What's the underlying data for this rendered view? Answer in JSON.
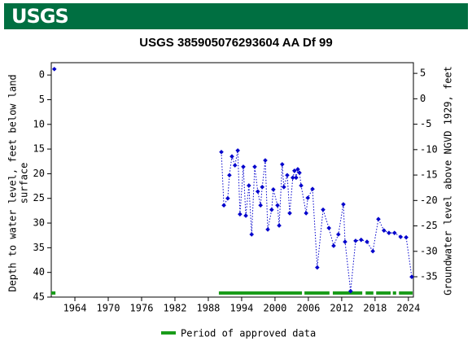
{
  "header": {
    "logo": "USGS"
  },
  "chart_data": {
    "type": "scatter",
    "title": "USGS 385905076293604 AA Df  99",
    "ylabel": [
      "Depth to water level, feet below land",
      "surface"
    ],
    "y2label": "Groundwater level above NGVD 1929, feet",
    "color": "#0000cc",
    "x": [
      1960.3,
      1990.35,
      1990.8,
      1991.5,
      1991.8,
      1992.25,
      1992.8,
      1993.3,
      1993.7,
      1994.3,
      1994.75,
      1995.3,
      1995.8,
      1996.35,
      1996.9,
      1997.4,
      1997.7,
      1998.25,
      1998.7,
      1999.4,
      1999.7,
      2000.45,
      2000.75,
      2001.3,
      2001.6,
      2002.2,
      2002.65,
      2003.2,
      2003.5,
      2003.8,
      2004.1,
      2004.4,
      2004.7,
      2005.6,
      2005.9,
      2006.75,
      2007.6,
      2008.65,
      2009.7,
      2010.55,
      2011.4,
      2012.3,
      2012.6,
      2013.6,
      2014.5,
      2015.5,
      2016.55,
      2017.6,
      2018.6,
      2019.6,
      2020.5,
      2021.5,
      2022.6,
      2023.6,
      2024.6
    ],
    "values": [
      -1.2,
      15.6,
      26.4,
      25.0,
      20.3,
      16.5,
      18.3,
      15.3,
      28.2,
      18.6,
      28.5,
      22.4,
      32.3,
      18.6,
      23.6,
      26.4,
      22.7,
      17.3,
      31.3,
      27.3,
      23.2,
      26.4,
      30.5,
      18.1,
      22.7,
      20.3,
      28.0,
      20.8,
      19.4,
      20.8,
      19.1,
      19.8,
      22.4,
      28.0,
      24.9,
      23.1,
      39.0,
      27.3,
      31.0,
      34.6,
      32.3,
      26.2,
      33.8,
      43.8,
      33.6,
      33.4,
      33.8,
      35.7,
      29.2,
      31.5,
      32.0,
      32.0,
      32.8,
      32.9,
      40.9
    ],
    "approved_periods": [
      [
        1959.75,
        1960.5
      ],
      [
        1989.9,
        2004.85
      ],
      [
        2005.3,
        2009.8
      ],
      [
        2010.4,
        2015.7
      ],
      [
        2016.3,
        2017.7
      ],
      [
        2018.2,
        2020.8
      ],
      [
        2021.2,
        2021.8
      ],
      [
        2022.3,
        2024.75
      ]
    ],
    "approved_color": "#1a9c1a",
    "legend_label": "Period of approved data",
    "xlim": [
      1959.75,
      2024.9
    ],
    "xticks": [
      1964,
      1970,
      1976,
      1982,
      1988,
      1994,
      2000,
      2006,
      2012,
      2018,
      2024
    ],
    "ylim": [
      -2.5,
      45
    ],
    "yticks": [
      0,
      5,
      10,
      15,
      20,
      25,
      30,
      35,
      40,
      45
    ],
    "y2lim": [
      7.1,
      -39
    ],
    "y2ticks": [
      5,
      0,
      -5,
      -10,
      -15,
      -20,
      -25,
      -30,
      -35
    ]
  }
}
